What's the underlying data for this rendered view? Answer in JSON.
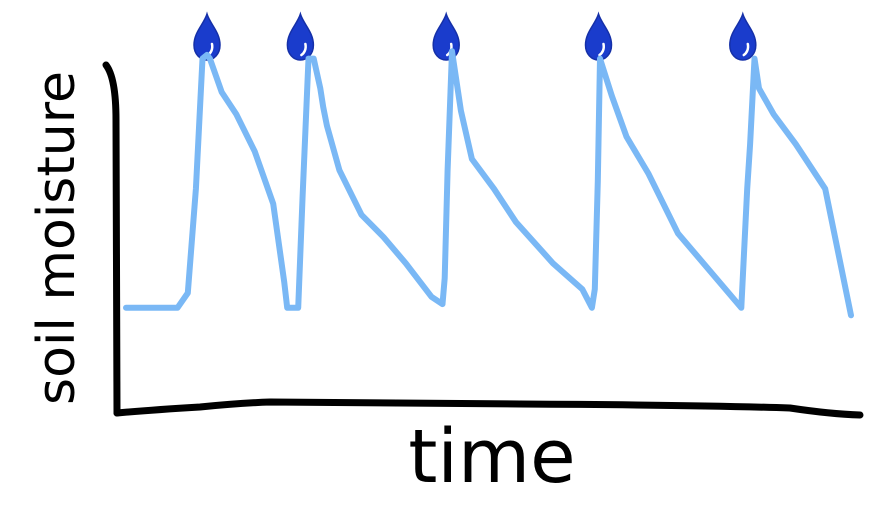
{
  "chart_data": {
    "type": "line",
    "title": "",
    "xlabel": "time",
    "ylabel": "soil moisture",
    "xlim": [
      0,
      100
    ],
    "ylim": [
      0,
      100
    ],
    "series": [
      {
        "name": "soil moisture",
        "x": [
          0,
          7,
          8.4,
          9.5,
          10.4,
          11,
          11.4,
          13,
          15,
          17.5,
          20,
          21.5,
          21.9,
          22.6,
          23.4,
          24,
          24.8,
          25.5,
          26.4,
          26.8,
          27.3,
          29,
          32,
          35,
          38,
          41.5,
          43,
          43.3,
          43.7,
          44.3,
          45.5,
          47,
          50,
          53,
          58,
          62,
          63.3,
          63.7,
          64.1,
          64.4,
          66,
          68,
          71,
          75,
          83.6,
          84.4,
          84.8,
          85.4,
          86,
          88,
          91,
          95,
          98.5
        ],
        "y": [
          28,
          28,
          32,
          60,
          95,
          96,
          95,
          86,
          80,
          70,
          56,
          35,
          28,
          28,
          28,
          58,
          95,
          95,
          87,
          82,
          77,
          65,
          53,
          47,
          40,
          31,
          29,
          36,
          65,
          97,
          81,
          68,
          60,
          51,
          40,
          33,
          28,
          33,
          62,
          95,
          85,
          74,
          64,
          48,
          28,
          60,
          72,
          95,
          87,
          80,
          72,
          60,
          26
        ]
      }
    ],
    "watering_events": [
      11,
      23.7,
      43.5,
      64.2,
      83.8
    ],
    "colors": {
      "line": "#7ab8f5",
      "drop": "#1a3ccc",
      "drop_highlight": "#ffffff",
      "axis": "#000000"
    }
  }
}
